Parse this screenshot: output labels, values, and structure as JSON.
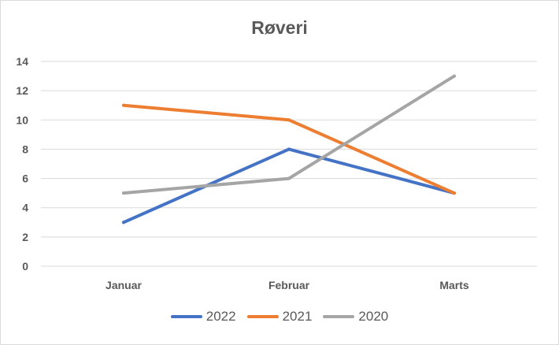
{
  "chart_data": {
    "type": "line",
    "title": "Røveri",
    "xlabel": "",
    "ylabel": "",
    "categories": [
      "Januar",
      "Februar",
      "Marts"
    ],
    "ylim": [
      0,
      14
    ],
    "yticks": [
      0,
      2,
      4,
      6,
      8,
      10,
      12,
      14
    ],
    "grid": true,
    "legend_position": "bottom",
    "series": [
      {
        "name": "2022",
        "values": [
          3,
          8,
          5
        ],
        "color": "#4472c4"
      },
      {
        "name": "2021",
        "values": [
          11,
          10,
          5
        ],
        "color": "#ed7d31"
      },
      {
        "name": "2020",
        "values": [
          5,
          6,
          13
        ],
        "color": "#a5a5a5"
      }
    ]
  }
}
